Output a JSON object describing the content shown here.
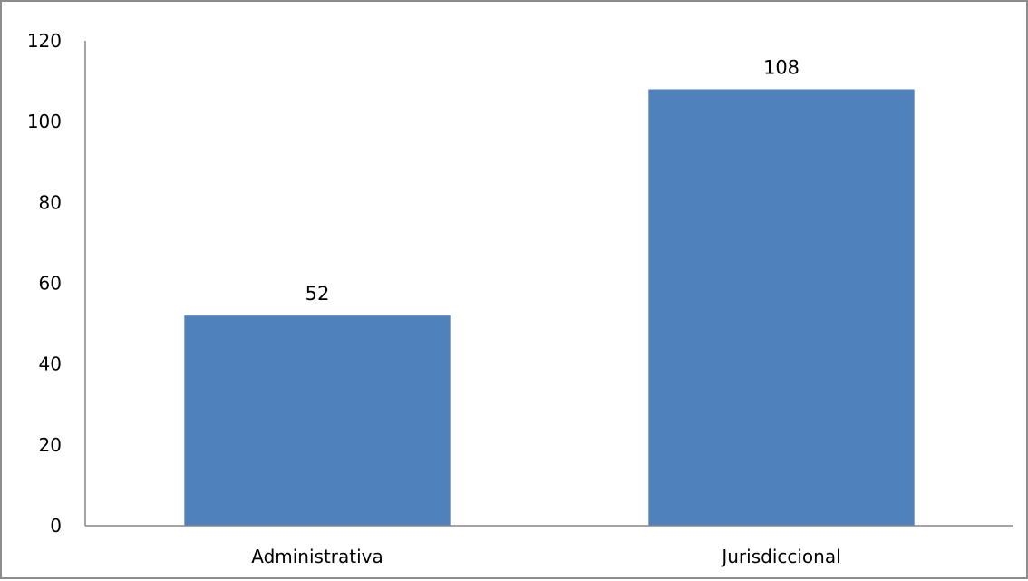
{
  "chart_data": {
    "type": "bar",
    "categories": [
      "Administrativa",
      "Jurisdiccional"
    ],
    "values": [
      52,
      108
    ],
    "data_labels": [
      "52",
      "108"
    ],
    "y_ticks": [
      "0",
      "20",
      "40",
      "60",
      "80",
      "100",
      "120"
    ],
    "ylim": [
      0,
      120
    ],
    "grid": false,
    "legend": "none",
    "bar_color": "#4f81bd",
    "axis_color": "#868686"
  }
}
